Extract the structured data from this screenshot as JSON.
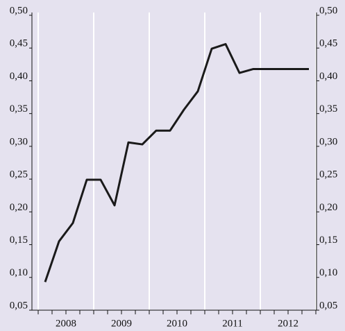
{
  "chart_data": {
    "type": "line",
    "year_labels": [
      "2008",
      "2009",
      "2010",
      "2011",
      "2012"
    ],
    "categories": [
      null,
      null,
      null,
      null,
      null,
      null,
      null,
      null,
      null,
      null,
      null,
      null,
      null,
      null,
      null,
      null,
      null,
      null,
      null,
      null
    ],
    "series": [
      {
        "color": "#1a1a1a",
        "values": [
          0.093,
          0.155,
          0.183,
          0.249,
          0.249,
          0.21,
          0.306,
          0.303,
          0.324,
          0.324,
          0.356,
          0.384,
          0.449,
          0.456,
          0.412,
          0.418,
          0.418,
          0.418,
          0.418,
          0.418
        ]
      }
    ],
    "ylim": [
      0.05,
      0.5
    ],
    "yticks": [
      {
        "value": 0.05,
        "label": "0,05"
      },
      {
        "value": 0.1,
        "label": "0,10"
      },
      {
        "value": 0.15,
        "label": "0,15"
      },
      {
        "value": 0.2,
        "label": "0,20"
      },
      {
        "value": 0.25,
        "label": "0,25"
      },
      {
        "value": 0.3,
        "label": "0,30"
      },
      {
        "value": 0.35,
        "label": "0,35"
      },
      {
        "value": 0.4,
        "label": "0,40"
      },
      {
        "value": 0.45,
        "label": "0,45"
      },
      {
        "value": 0.5,
        "label": "0,50"
      }
    ],
    "y2lim": [
      0.05,
      0.5
    ],
    "y2ticks": [
      {
        "value": 0.05,
        "label": "0,05"
      },
      {
        "value": 0.1,
        "label": "0,10"
      },
      {
        "value": 0.15,
        "label": "0,15"
      },
      {
        "value": 0.2,
        "label": "0,20"
      },
      {
        "value": 0.25,
        "label": "0,25"
      },
      {
        "value": 0.3,
        "label": "0,30"
      },
      {
        "value": 0.35,
        "label": "0,35"
      },
      {
        "value": 0.4,
        "label": "0,40"
      },
      {
        "value": 0.45,
        "label": "0,45"
      },
      {
        "value": 0.5,
        "label": "0,50"
      }
    ]
  }
}
